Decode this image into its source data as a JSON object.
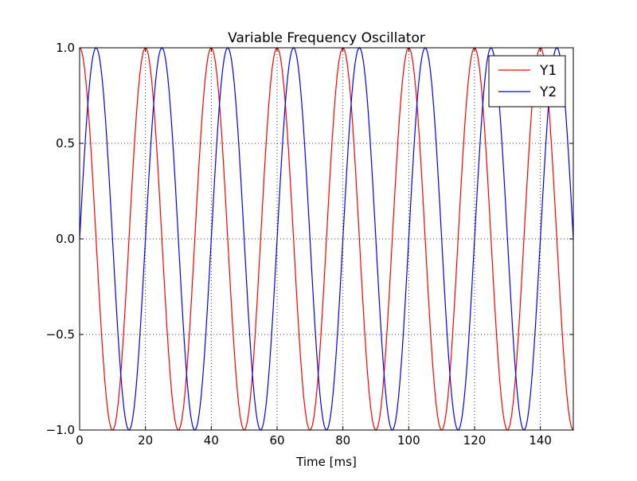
{
  "chart_data": {
    "type": "line",
    "title": "Variable Frequency Oscillator",
    "xlabel": "Time [ms]",
    "ylabel": "",
    "xlim": [
      0,
      150
    ],
    "ylim": [
      -1.0,
      1.0
    ],
    "xticks": [
      0,
      20,
      40,
      60,
      80,
      100,
      120,
      140
    ],
    "xtick_labels": [
      "0",
      "20",
      "40",
      "60",
      "80",
      "100",
      "120",
      "140"
    ],
    "yticks": [
      -1.0,
      -0.5,
      0.0,
      0.5,
      1.0
    ],
    "ytick_labels": [
      "−1.0",
      "−0.5",
      "0.0",
      "0.5",
      "1.0"
    ],
    "grid": true,
    "legend_position": "top-right",
    "period_ms": 20,
    "sample_step_ms": 0.25,
    "series": [
      {
        "name": "Y1",
        "function": "cos",
        "amplitude": 1.0,
        "color": "#ff0000"
      },
      {
        "name": "Y2",
        "function": "sin",
        "amplitude": 1.0,
        "color": "#0000ff"
      }
    ]
  }
}
